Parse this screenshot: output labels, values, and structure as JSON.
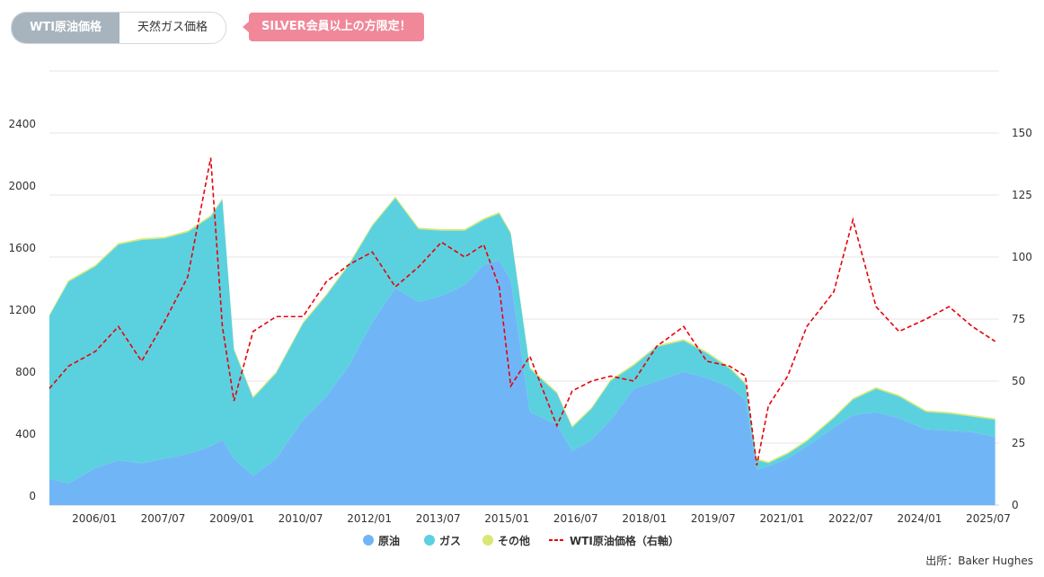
{
  "tabs": [
    {
      "label": "WTI原油価格",
      "active": true
    },
    {
      "label": "天然ガス価格",
      "active": false
    }
  ],
  "badge": {
    "label": "SILVER会員以上の方限定！",
    "color": "#f0889a"
  },
  "source": "出所：Baker Hughes",
  "colors": {
    "oil": "#70b6f7",
    "gas": "#5bd1df",
    "other": "#d9e872",
    "wti": "#e8000b"
  },
  "chart_data": {
    "type": "area",
    "stacked": true,
    "grid": true,
    "legend_position": "bottom",
    "x_ticks": [
      "2006/01",
      "2007/07",
      "2009/01",
      "2010/07",
      "2012/01",
      "2013/07",
      "2015/01",
      "2016/07",
      "2018/01",
      "2019/07",
      "2021/01",
      "2022/07",
      "2024/01",
      "2025/07"
    ],
    "y_left": {
      "range": [
        0,
        2400
      ],
      "ticks": [
        0,
        400,
        800,
        1200,
        1600,
        2000,
        2400
      ]
    },
    "y_right": {
      "range": [
        0,
        150
      ],
      "ticks": [
        0,
        25,
        50,
        75,
        100,
        125,
        150
      ]
    },
    "x_range": [
      "2005-01-01",
      "2025-08-01"
    ],
    "x": [
      "2005-01-01",
      "2005-06-01",
      "2006-01-01",
      "2006-07-01",
      "2007-01-01",
      "2007-07-01",
      "2008-01-01",
      "2008-07-01",
      "2008-10-01",
      "2009-01-01",
      "2009-06-01",
      "2009-12-01",
      "2010-07-01",
      "2011-01-01",
      "2011-07-01",
      "2012-01-01",
      "2012-07-01",
      "2013-01-01",
      "2013-07-01",
      "2014-01-01",
      "2014-06-01",
      "2014-10-01",
      "2015-01-01",
      "2015-06-01",
      "2016-01-01",
      "2016-05-01",
      "2016-10-01",
      "2017-03-01",
      "2017-09-01",
      "2018-03-01",
      "2018-10-01",
      "2019-04-01",
      "2019-10-01",
      "2020-02-01",
      "2020-05-01",
      "2020-08-01",
      "2021-01-01",
      "2021-06-01",
      "2022-01-01",
      "2022-06-01",
      "2022-12-01",
      "2023-06-01",
      "2024-01-01",
      "2024-07-01",
      "2025-01-01",
      "2025-07-01"
    ],
    "series": [
      {
        "name": "原油",
        "values": [
          170,
          140,
          240,
          290,
          270,
          300,
          330,
          380,
          420,
          300,
          190,
          300,
          550,
          700,
          900,
          1180,
          1400,
          1310,
          1350,
          1420,
          1550,
          1580,
          1450,
          600,
          520,
          350,
          420,
          550,
          750,
          800,
          860,
          820,
          760,
          680,
          230,
          250,
          300,
          380,
          500,
          580,
          600,
          560,
          490,
          480,
          470,
          440
        ]
      },
      {
        "name": "ガス",
        "values": [
          1050,
          1300,
          1300,
          1390,
          1440,
          1420,
          1430,
          1480,
          1550,
          700,
          500,
          550,
          620,
          650,
          650,
          620,
          580,
          470,
          420,
          350,
          290,
          300,
          300,
          280,
          200,
          150,
          200,
          250,
          150,
          220,
          200,
          160,
          120,
          100,
          60,
          20,
          30,
          30,
          60,
          100,
          150,
          140,
          110,
          110,
          100,
          110
        ]
      },
      {
        "name": "その他",
        "values": [
          10,
          10,
          10,
          10,
          10,
          10,
          10,
          10,
          10,
          10,
          10,
          10,
          10,
          10,
          10,
          10,
          10,
          10,
          10,
          10,
          10,
          10,
          10,
          10,
          10,
          10,
          10,
          10,
          10,
          10,
          10,
          10,
          10,
          10,
          10,
          10,
          10,
          10,
          10,
          10,
          10,
          10,
          10,
          10,
          10,
          10
        ]
      },
      {
        "name": "WTI原油価格（右軸）",
        "axis": "right",
        "line": "dashed",
        "values": [
          47,
          56,
          62,
          72,
          58,
          74,
          92,
          140,
          72,
          42,
          70,
          76,
          76,
          90,
          97,
          102,
          88,
          96,
          106,
          100,
          105,
          88,
          48,
          60,
          32,
          46,
          50,
          52,
          50,
          64,
          72,
          58,
          56,
          52,
          16,
          40,
          52,
          72,
          86,
          115,
          80,
          70,
          75,
          80,
          72,
          66
        ]
      }
    ]
  }
}
